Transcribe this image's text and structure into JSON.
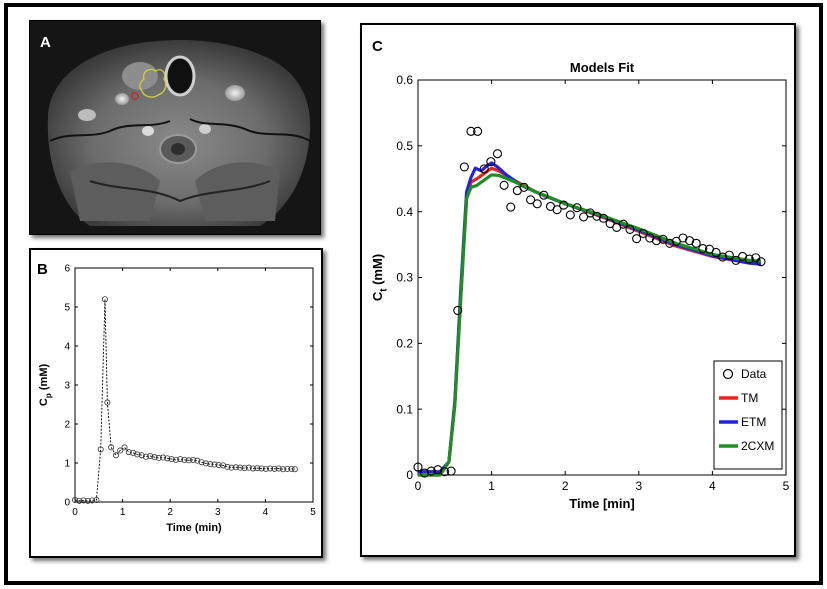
{
  "panels": {
    "a": {
      "letter": "A"
    },
    "b": {
      "letter": "B"
    },
    "c": {
      "letter": "C"
    }
  },
  "colors": {
    "tm": "#e8241f",
    "etm": "#2424d6",
    "2cxm": "#1f8f24",
    "roi_yellow": "#d8d23a",
    "roi_red": "#c42a2a"
  },
  "chart_data": [
    {
      "id": "panel-b",
      "type": "line",
      "xlabel": "Time (min)",
      "ylabel": "C",
      "ylabel_subscript": "p",
      "ylabel_unit": " (mM)",
      "xlim": [
        0,
        5
      ],
      "ylim": [
        0,
        6
      ],
      "xticks": [
        "0",
        "1",
        "2",
        "3",
        "4",
        "5"
      ],
      "yticks": [
        "0",
        "1",
        "2",
        "3",
        "4",
        "5",
        "6"
      ],
      "series": [
        {
          "marker": "circle",
          "x": [
            0.0,
            0.09,
            0.18,
            0.27,
            0.36,
            0.45,
            0.54,
            0.63,
            0.68,
            0.76,
            0.86,
            0.95,
            1.04,
            1.13,
            1.22,
            1.31,
            1.4,
            1.49,
            1.58,
            1.67,
            1.76,
            1.85,
            1.94,
            2.03,
            2.12,
            2.21,
            2.3,
            2.39,
            2.48,
            2.57,
            2.66,
            2.75,
            2.84,
            2.93,
            3.02,
            3.11,
            3.2,
            3.29,
            3.38,
            3.47,
            3.56,
            3.65,
            3.74,
            3.83,
            3.92,
            4.01,
            4.1,
            4.19,
            4.28,
            4.37,
            4.46,
            4.55,
            4.62
          ],
          "y": [
            0.05,
            0.03,
            0.04,
            0.03,
            0.04,
            0.05,
            1.35,
            5.2,
            2.55,
            1.4,
            1.2,
            1.32,
            1.4,
            1.28,
            1.26,
            1.22,
            1.2,
            1.16,
            1.18,
            1.15,
            1.13,
            1.14,
            1.12,
            1.1,
            1.08,
            1.1,
            1.08,
            1.07,
            1.08,
            1.06,
            1.02,
            0.99,
            0.97,
            0.96,
            0.95,
            0.94,
            0.9,
            0.88,
            0.89,
            0.88,
            0.87,
            0.88,
            0.86,
            0.87,
            0.86,
            0.85,
            0.86,
            0.85,
            0.86,
            0.84,
            0.85,
            0.85,
            0.84
          ]
        }
      ]
    },
    {
      "id": "panel-c",
      "type": "line",
      "title": "Models Fit",
      "xlabel": "Time [min]",
      "ylabel": "C",
      "ylabel_subscript": "t",
      "ylabel_unit": " (mM)",
      "xlim": [
        0,
        5
      ],
      "ylim": [
        0,
        0.6
      ],
      "xticks": [
        "0",
        "1",
        "2",
        "3",
        "4",
        "5"
      ],
      "yticks": [
        "0",
        "0.1",
        "0.2",
        "0.3",
        "0.4",
        "0.5",
        "0.6"
      ],
      "legend": "bottom-right",
      "data_points": {
        "name": "Data",
        "x": [
          0.0,
          0.09,
          0.18,
          0.27,
          0.36,
          0.45,
          0.54,
          0.63,
          0.72,
          0.81,
          0.9,
          0.99,
          1.08,
          1.17,
          1.26,
          1.35,
          1.44,
          1.53,
          1.62,
          1.71,
          1.8,
          1.89,
          1.98,
          2.07,
          2.16,
          2.25,
          2.34,
          2.43,
          2.52,
          2.61,
          2.7,
          2.79,
          2.88,
          2.97,
          3.06,
          3.15,
          3.24,
          3.33,
          3.42,
          3.51,
          3.6,
          3.69,
          3.78,
          3.87,
          3.96,
          4.05,
          4.14,
          4.23,
          4.32,
          4.41,
          4.5,
          4.59,
          4.66
        ],
        "y": [
          0.012,
          0.003,
          0.006,
          0.008,
          0.005,
          0.006,
          0.25,
          0.468,
          0.522,
          0.522,
          0.465,
          0.476,
          0.488,
          0.44,
          0.407,
          0.432,
          0.437,
          0.418,
          0.412,
          0.425,
          0.408,
          0.403,
          0.41,
          0.395,
          0.406,
          0.392,
          0.398,
          0.393,
          0.39,
          0.382,
          0.376,
          0.381,
          0.373,
          0.359,
          0.367,
          0.36,
          0.356,
          0.358,
          0.352,
          0.355,
          0.36,
          0.356,
          0.352,
          0.344,
          0.343,
          0.338,
          0.331,
          0.334,
          0.326,
          0.332,
          0.328,
          0.33,
          0.324
        ]
      },
      "series": [
        {
          "name": "TM",
          "x": [
            0.0,
            0.3,
            0.42,
            0.5,
            0.58,
            0.66,
            0.72,
            0.8,
            0.9,
            1.0,
            1.1,
            1.3,
            1.6,
            2.0,
            2.5,
            3.0,
            3.5,
            4.0,
            4.5,
            4.66
          ],
          "y": [
            0.0,
            0.0,
            0.02,
            0.11,
            0.27,
            0.42,
            0.445,
            0.45,
            0.458,
            0.466,
            0.462,
            0.448,
            0.43,
            0.412,
            0.392,
            0.37,
            0.348,
            0.332,
            0.322,
            0.321
          ]
        },
        {
          "name": "ETM",
          "x": [
            0.0,
            0.3,
            0.42,
            0.5,
            0.58,
            0.66,
            0.72,
            0.78,
            0.86,
            0.94,
            1.0,
            1.08,
            1.2,
            1.4,
            1.7,
            2.0,
            2.5,
            3.0,
            3.5,
            4.0,
            4.5,
            4.66
          ],
          "y": [
            0.005,
            0.005,
            0.02,
            0.11,
            0.28,
            0.43,
            0.452,
            0.466,
            0.462,
            0.47,
            0.474,
            0.468,
            0.456,
            0.44,
            0.425,
            0.412,
            0.393,
            0.372,
            0.35,
            0.333,
            0.322,
            0.32
          ]
        },
        {
          "name": "2CXM",
          "x": [
            0.0,
            0.3,
            0.42,
            0.5,
            0.58,
            0.66,
            0.72,
            0.8,
            0.9,
            1.0,
            1.1,
            1.3,
            1.6,
            2.0,
            2.5,
            3.0,
            3.5,
            4.0,
            4.5,
            4.66
          ],
          "y": [
            0.0,
            0.0,
            0.02,
            0.105,
            0.265,
            0.42,
            0.437,
            0.44,
            0.448,
            0.456,
            0.455,
            0.446,
            0.43,
            0.412,
            0.394,
            0.374,
            0.352,
            0.335,
            0.326,
            0.325
          ]
        }
      ]
    }
  ]
}
